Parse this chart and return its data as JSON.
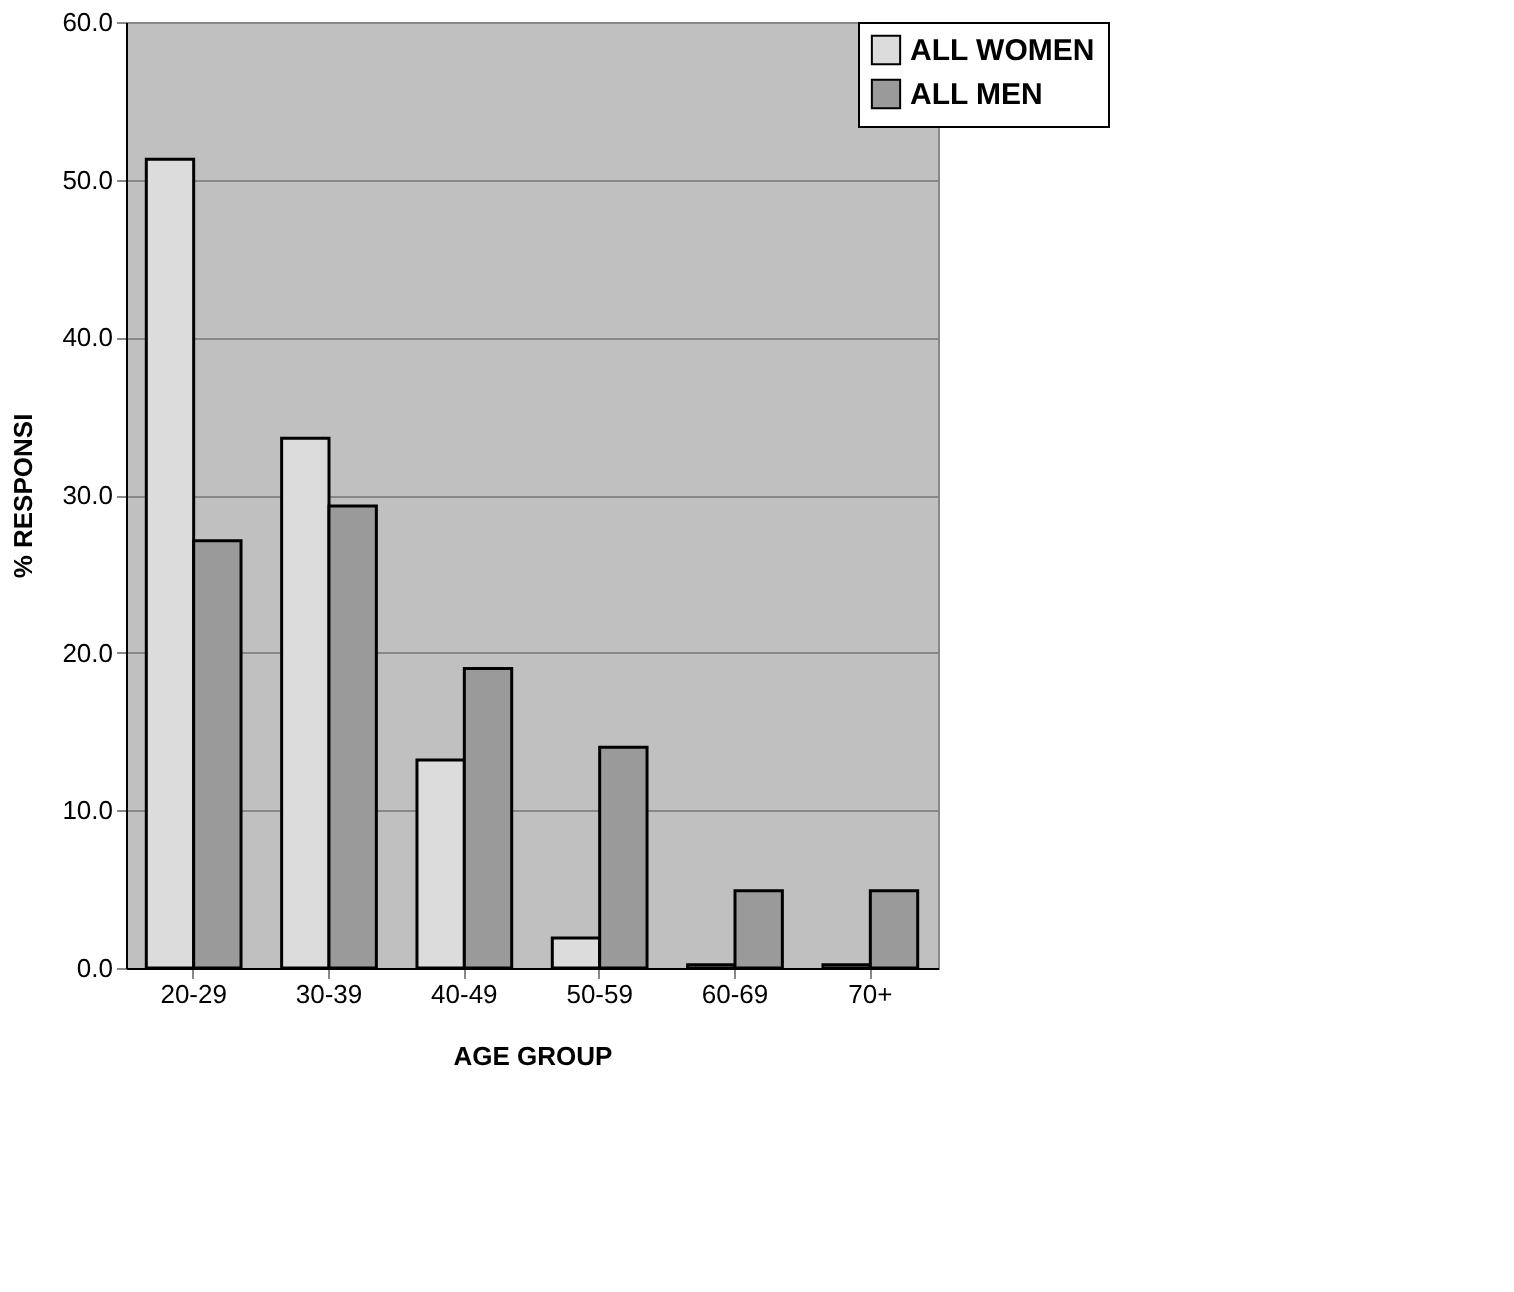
{
  "chart_data": {
    "type": "bar",
    "xlabel": "AGE GROUP",
    "ylabel": "% RESPONSI",
    "categories": [
      "20-29",
      "30-39",
      "40-49",
      "50-59",
      "60-69",
      "70+"
    ],
    "series": [
      {
        "name": "ALL WOMEN",
        "color": "#dcdcdc",
        "values": [
          51.3,
          33.6,
          13.2,
          1.9,
          0.2,
          0.2
        ]
      },
      {
        "name": "ALL MEN",
        "color": "#9a9a9a",
        "values": [
          27.1,
          29.3,
          19.0,
          14.0,
          4.9,
          4.9
        ]
      }
    ],
    "ylim": [
      0,
      60
    ],
    "yticks": [
      {
        "value": 0,
        "label": "0.0"
      },
      {
        "value": 10,
        "label": "10.0"
      },
      {
        "value": 20,
        "label": "20.0"
      },
      {
        "value": 30,
        "label": "30.0"
      },
      {
        "value": 40,
        "label": "40.0"
      },
      {
        "value": 50,
        "label": "50.0"
      },
      {
        "value": 60,
        "label": "60.0"
      }
    ],
    "grid": "y",
    "legend": "right"
  }
}
